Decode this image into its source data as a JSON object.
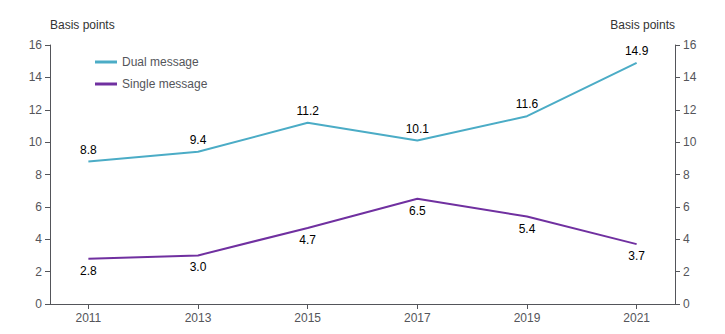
{
  "chart_data": {
    "type": "line",
    "x": [
      2011,
      2013,
      2015,
      2017,
      2019,
      2021
    ],
    "xlim": [
      2010.3,
      2021.7
    ],
    "xticks": [
      2011,
      2013,
      2015,
      2017,
      2019,
      2021
    ],
    "ylim": [
      0,
      16
    ],
    "yticks": [
      0,
      2,
      4,
      6,
      8,
      10,
      12,
      14,
      16
    ],
    "y2lim": [
      0,
      16
    ],
    "y2ticks": [
      0,
      2,
      4,
      6,
      8,
      10,
      12,
      14,
      16
    ],
    "ylabel": "Basis points",
    "y2label": "Basis points",
    "series": [
      {
        "name": "Dual message",
        "color": "#4bacc6",
        "values": [
          8.8,
          9.4,
          11.2,
          10.1,
          11.6,
          14.9
        ]
      },
      {
        "name": "Single message",
        "color": "#7030a0",
        "values": [
          2.8,
          3.0,
          4.7,
          6.5,
          5.4,
          3.7
        ],
        "value_labels": [
          "2.8",
          "3.0",
          "4.7",
          "6.5",
          "5.4",
          "3.7"
        ]
      }
    ],
    "data_labels": true,
    "legend": "upper left",
    "grid": false
  }
}
